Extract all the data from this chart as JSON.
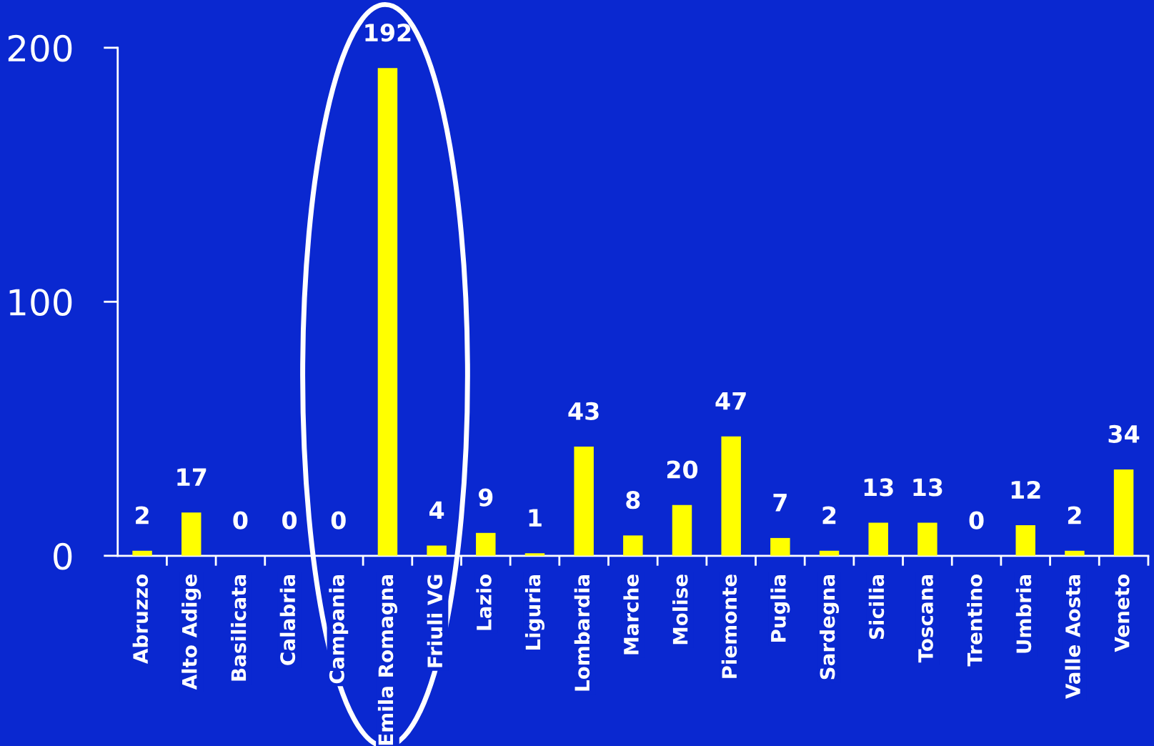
{
  "chart_data": {
    "type": "bar",
    "categories": [
      "Abruzzo",
      "Alto Adige",
      "Basilicata",
      "Calabria",
      "Campania",
      "Emila Romagna",
      "Friuli VG",
      "Lazio",
      "Liguria",
      "Lombardia",
      "Marche",
      "Molise",
      "Piemonte",
      "Puglia",
      "Sardegna",
      "Sicilia",
      "Toscana",
      "Trentino",
      "Umbria",
      "Valle Aosta",
      "Veneto"
    ],
    "values": [
      2,
      17,
      0,
      0,
      0,
      192,
      4,
      9,
      1,
      43,
      8,
      20,
      47,
      7,
      2,
      13,
      13,
      0,
      12,
      2,
      34
    ],
    "color": "#ffff00",
    "ylim": [
      0,
      200
    ],
    "yticks": [
      0,
      100,
      200
    ],
    "data_labels": true,
    "grid": false,
    "legend": false
  }
}
